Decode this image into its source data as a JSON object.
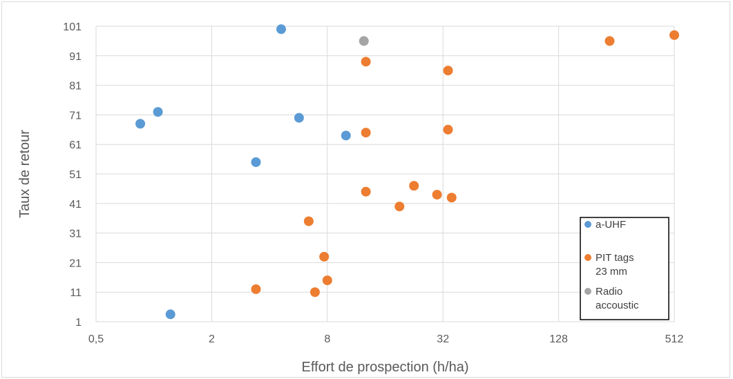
{
  "chart_data": {
    "type": "scatter",
    "title": "",
    "xlabel": "Effort de prospection (h/ha)",
    "ylabel": "Taux de retour",
    "x_scale": "log2",
    "xlim": [
      0.5,
      512
    ],
    "ylim": [
      1,
      101
    ],
    "x_ticks": [
      0.5,
      2,
      8,
      32,
      128,
      512
    ],
    "x_tick_labels": [
      "0,5",
      "2",
      "8",
      "32",
      "128",
      "512"
    ],
    "y_ticks": [
      1,
      11,
      21,
      31,
      41,
      51,
      61,
      71,
      81,
      91,
      101
    ],
    "y_tick_labels": [
      "1",
      "11",
      "21",
      "31",
      "41",
      "51",
      "61",
      "71",
      "81",
      "91",
      "101"
    ],
    "grid": "vertical and horizontal major gridlines",
    "legend_position": "bottom-right",
    "series": [
      {
        "name": "a-UHF",
        "color": "#5b9bd5",
        "points": [
          {
            "x": 0.85,
            "y": 68
          },
          {
            "x": 1.05,
            "y": 72
          },
          {
            "x": 1.22,
            "y": 3.5
          },
          {
            "x": 3.4,
            "y": 55
          },
          {
            "x": 4.6,
            "y": 100
          },
          {
            "x": 5.7,
            "y": 70
          },
          {
            "x": 10,
            "y": 64
          }
        ]
      },
      {
        "name": "PIT tags 23 mm",
        "color": "#ed7d31",
        "points": [
          {
            "x": 3.4,
            "y": 12
          },
          {
            "x": 6.4,
            "y": 35
          },
          {
            "x": 6.9,
            "y": 11
          },
          {
            "x": 7.7,
            "y": 23
          },
          {
            "x": 8.0,
            "y": 15
          },
          {
            "x": 12.7,
            "y": 89
          },
          {
            "x": 12.7,
            "y": 65
          },
          {
            "x": 12.7,
            "y": 45
          },
          {
            "x": 19.0,
            "y": 40
          },
          {
            "x": 22.6,
            "y": 47
          },
          {
            "x": 29.8,
            "y": 44
          },
          {
            "x": 34.0,
            "y": 86
          },
          {
            "x": 34.0,
            "y": 66
          },
          {
            "x": 35.5,
            "y": 43
          },
          {
            "x": 236,
            "y": 96
          },
          {
            "x": 512,
            "y": 98
          }
        ]
      },
      {
        "name": "Radio accoustic",
        "color": "#a5a5a5",
        "points": [
          {
            "x": 12.4,
            "y": 96
          }
        ]
      }
    ]
  }
}
